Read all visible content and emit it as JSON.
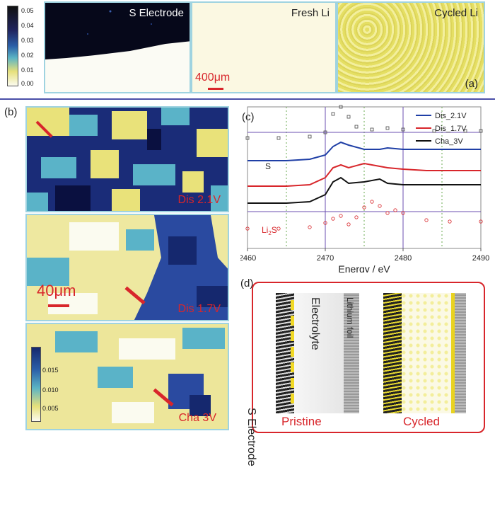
{
  "panel_a": {
    "label": "(a)",
    "colorbar_ticks": [
      "0.05",
      "0.04",
      "0.03",
      "0.02",
      "0.01",
      "0.00"
    ],
    "titles": [
      "S Electrode",
      "Fresh Li",
      "Cycled Li"
    ],
    "scalebar": "400μm"
  },
  "panel_b": {
    "label": "(b)",
    "maps": [
      "Dis 2.1V",
      "Dis 1.7V",
      "Cha 3V"
    ],
    "scalebar": "40μm",
    "colorbar_ticks": [
      "0.015",
      "0.010",
      "0.005"
    ]
  },
  "panel_c": {
    "label": "(c)",
    "xlabel": "Energy / eV",
    "xticks": [
      "2460",
      "2470",
      "2480",
      "2490"
    ],
    "legend": [
      "Dis_2.1V",
      "Dis_1.7V",
      "Cha_3V"
    ],
    "annotations": {
      "s": "S",
      "li2s_main": "Li",
      "li2s_sub": "2",
      "li2s_end": "S"
    },
    "colors": {
      "dis21": "#1f3fa6",
      "dis17": "#d8262b",
      "cha3": "#111111",
      "s_ref": "#444444",
      "li2s_ref": "#d8262b"
    }
  },
  "panel_d": {
    "label": "(d)",
    "pristine_layers": [
      "S Electrode",
      "Electrolyte",
      "Lithium foil"
    ],
    "captions": [
      "Pristine",
      "Cycled"
    ],
    "frame_color": "#d8262b"
  },
  "chart_data": {
    "type": "line",
    "xlabel": "Energy / eV",
    "ylabel": "",
    "xlim": [
      2460,
      2490
    ],
    "x": [
      2460,
      2465,
      2468,
      2470,
      2471,
      2472,
      2473,
      2475,
      2477,
      2478,
      2480,
      2483,
      2485,
      2490
    ],
    "series": [
      {
        "name": "Dis_2.1V",
        "values": [
          0.62,
          0.62,
          0.63,
          0.66,
          0.72,
          0.75,
          0.73,
          0.7,
          0.7,
          0.71,
          0.7,
          0.7,
          0.7,
          0.7
        ]
      },
      {
        "name": "Dis_1.7V",
        "values": [
          0.44,
          0.44,
          0.45,
          0.5,
          0.57,
          0.59,
          0.57,
          0.6,
          0.58,
          0.57,
          0.56,
          0.55,
          0.55,
          0.55
        ]
      },
      {
        "name": "Cha_3V",
        "values": [
          0.32,
          0.32,
          0.33,
          0.38,
          0.47,
          0.5,
          0.46,
          0.47,
          0.49,
          0.46,
          0.45,
          0.45,
          0.45,
          0.45
        ]
      }
    ]
  }
}
